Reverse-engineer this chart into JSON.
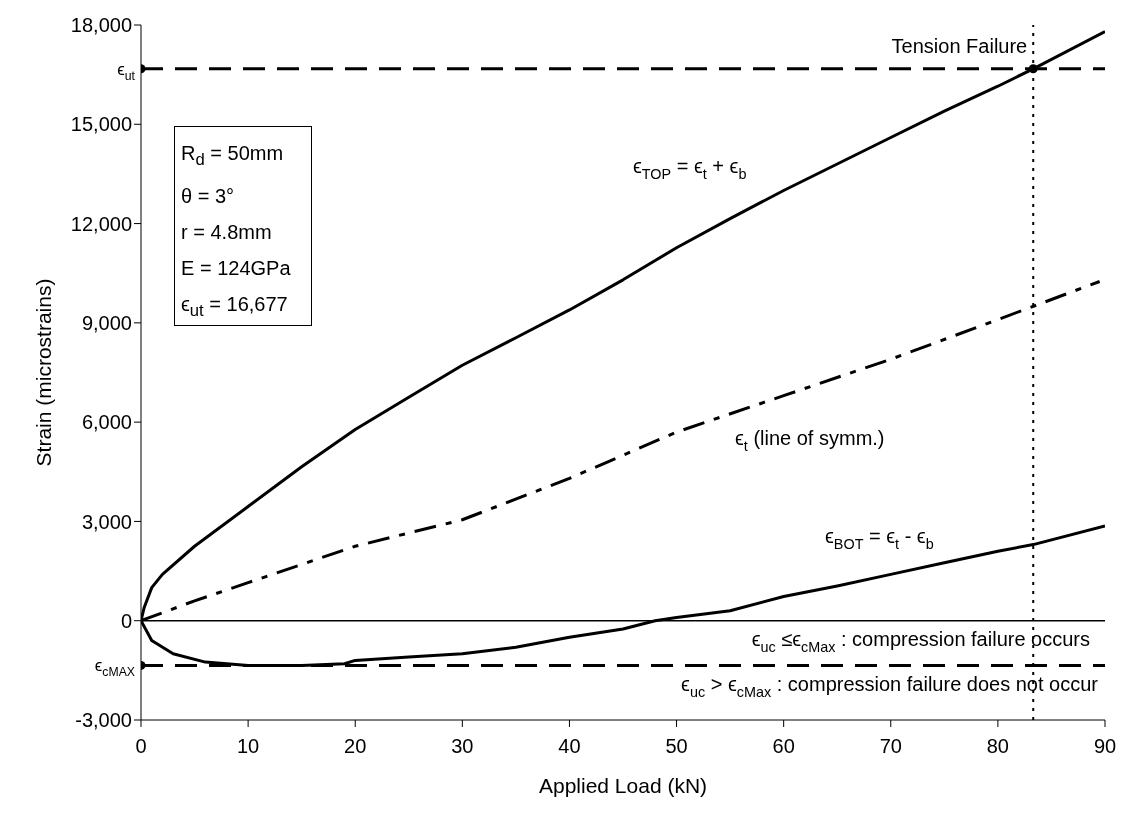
{
  "chart_data": {
    "type": "line",
    "xlabel": "Applied Load (kN)",
    "ylabel": "Strain (microstrains)",
    "xlim": [
      0,
      90
    ],
    "xticks": [
      0,
      10,
      20,
      30,
      40,
      50,
      60,
      70,
      80,
      90
    ],
    "ylim": [
      -3000,
      18000
    ],
    "yticks": [
      {
        "value": -3000,
        "label": "-3,000"
      },
      0,
      {
        "value": 3000,
        "label": "3,000"
      },
      {
        "value": 6000,
        "label": "6,000"
      },
      {
        "value": 9000,
        "label": "9,000"
      },
      {
        "value": 12000,
        "label": "12,000"
      },
      {
        "value": 15000,
        "label": "15,000"
      },
      {
        "value": 18000,
        "label": "18,000"
      }
    ],
    "grid": false,
    "series": [
      {
        "color": "#000000",
        "line_style": "solid",
        "marker": "none",
        "x": [
          0,
          0.3,
          1,
          2,
          5,
          10,
          15,
          20,
          25,
          30,
          35,
          40,
          45,
          50,
          55,
          60,
          65,
          70,
          75,
          80,
          83.3,
          90
        ],
        "values": [
          0,
          400,
          1000,
          1400,
          2250,
          3450,
          4650,
          5780,
          6750,
          7720,
          8550,
          9390,
          10300,
          11270,
          12150,
          13000,
          13800,
          14600,
          15400,
          16150,
          16677,
          17800
        ]
      },
      {
        "color": "#000000",
        "line_style": "dashdot",
        "marker": "none",
        "x": [
          0,
          5,
          10,
          20,
          30,
          40,
          50,
          60,
          70,
          80,
          83.3,
          89.5
        ],
        "values": [
          0,
          600,
          1150,
          2250,
          3050,
          4300,
          5700,
          6800,
          7900,
          9100,
          9500,
          10250
        ]
      },
      {
        "color": "#000000",
        "line_style": "solid",
        "marker": "none",
        "x": [
          0,
          1,
          3,
          6,
          10,
          15,
          19,
          20,
          25,
          30,
          35,
          40,
          45,
          48,
          50,
          55,
          60,
          65,
          70,
          75,
          80,
          83.3,
          90
        ],
        "values": [
          0,
          -600,
          -1000,
          -1250,
          -1350,
          -1350,
          -1300,
          -1200,
          -1100,
          -1000,
          -800,
          -500,
          -250,
          0,
          100,
          300,
          730,
          1050,
          1400,
          1750,
          2100,
          2300,
          2860
        ]
      },
      {
        "type": "scatter",
        "color": "#000000",
        "marker": "circle",
        "x": [
          0,
          83.3,
          0
        ],
        "values": [
          16677,
          16677,
          -1350
        ]
      }
    ],
    "ref_lines": [
      {
        "axis": "y",
        "value": 0,
        "line_style": "solid",
        "color": "#000000"
      },
      {
        "axis": "y",
        "value": 16677,
        "label": "ϵ$_{ut}$",
        "line_style": "dashed",
        "color": "#000000"
      },
      {
        "axis": "y",
        "value": -1350,
        "label": "ϵ$_{cMAX}$",
        "line_style": "dashed",
        "color": "#000000"
      },
      {
        "axis": "x",
        "value": 83.3,
        "line_style": "dotted",
        "color": "#000000"
      }
    ],
    "annotations": [
      "R$_{d}$ = 50mm",
      "θ = 3°",
      "r = 4.8mm",
      "E = 124GPa",
      "ϵ$_{ut}$ = 16,677",
      {
        "text": "Tension Failure",
        "x": 83.3,
        "y": 16677
      },
      "ϵ$_{TOP}$ = ϵ$_{t}$ + ϵ$_{b}$",
      "ϵ$_{t}$ (line of symm.)",
      "ϵ$_{BOT}$ = ϵ$_{t}$ - ϵ$_{b}$",
      "ϵ$_{uc}$ ≤ϵ$_{cMax}$ : compression failure occurs",
      "ϵ$_{uc}$ > ϵ$_{cMax}$ : compression failure does not occur"
    ]
  }
}
